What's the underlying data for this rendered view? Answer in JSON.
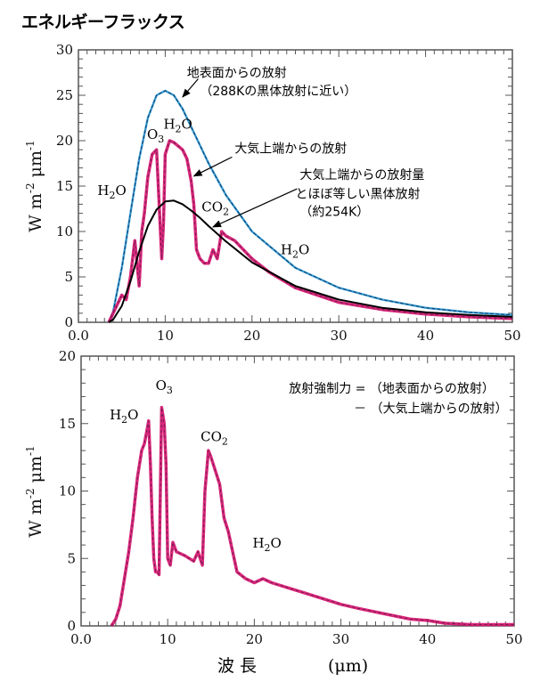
{
  "title": "エネルギーフラックス",
  "chart_data": [
    {
      "type": "line",
      "title": "エネルギーフラックス",
      "ylabel": "W m-2 μm-1",
      "ylabel_parts": {
        "base1": "W m",
        "sup1": "-2",
        "base2": " μm",
        "sup2": "-1"
      },
      "xlim": [
        0,
        50
      ],
      "ylim": [
        0,
        30
      ],
      "x_ticks": [
        "0.0",
        "10",
        "20",
        "30",
        "40",
        "50"
      ],
      "x_tick_values": [
        0,
        10,
        20,
        30,
        40,
        50
      ],
      "y_ticks": [
        "0",
        "5",
        "10",
        "15",
        "20",
        "25",
        "30"
      ],
      "y_tick_values": [
        0,
        5,
        10,
        15,
        20,
        25,
        30
      ],
      "grid": false,
      "series": [
        {
          "name": "地表面からの放射 (288Kの黒体放射に近い)",
          "color": "#1a6fa8",
          "x": [
            3.5,
            4,
            5,
            6,
            7,
            8,
            9,
            10,
            11,
            12,
            13,
            14,
            15,
            17,
            20,
            25,
            30,
            35,
            40,
            45,
            50
          ],
          "y": [
            0,
            1.2,
            6,
            12,
            18,
            22.5,
            25,
            25.5,
            25,
            23.5,
            21.5,
            19.5,
            17.5,
            14,
            10,
            6,
            3.8,
            2.5,
            1.6,
            1.1,
            0.8
          ]
        },
        {
          "name": "大気上端からの放射",
          "color": "#d4106a",
          "x": [
            3.5,
            4,
            5,
            5.5,
            6,
            6.5,
            7,
            7.3,
            7.6,
            8,
            8.5,
            9,
            9.3,
            9.6,
            9.8,
            10,
            10.5,
            11,
            12,
            12.5,
            13,
            13.3,
            13.6,
            14,
            14.5,
            15,
            15.5,
            16,
            16.5,
            17,
            18,
            19,
            20,
            22,
            25,
            30,
            35,
            40,
            45,
            50
          ],
          "y": [
            0,
            1,
            3,
            2.5,
            5,
            9,
            4,
            10,
            12,
            16,
            18.5,
            19,
            13,
            7,
            11,
            18.5,
            20,
            19.8,
            19,
            18,
            15.5,
            13,
            8,
            7,
            6.5,
            6.5,
            8,
            7,
            10,
            9.5,
            9,
            8,
            7,
            5.5,
            3.8,
            2.2,
            1.4,
            0.9,
            0.6,
            0.4
          ]
        },
        {
          "name": "大気上端からの放射量とほぼ等しい黒体放射 (約254K)",
          "color": "#000000",
          "x": [
            3.5,
            4,
            5,
            6,
            7,
            8,
            9,
            10,
            11,
            12,
            13,
            14,
            15,
            17,
            20,
            25,
            30,
            35,
            40,
            45,
            50
          ],
          "y": [
            0,
            0.3,
            1.8,
            4.5,
            7.8,
            10.6,
            12.4,
            13.3,
            13.4,
            13.0,
            12.3,
            11.5,
            10.6,
            8.9,
            6.6,
            4.0,
            2.5,
            1.6,
            1.1,
            0.8,
            0.6
          ]
        }
      ],
      "annotations": [
        {
          "text": "地表面からの放射",
          "x": 12.5,
          "y": 27
        },
        {
          "text": "（288Kの黒体放射に近い）",
          "x": 14,
          "y": 25
        },
        {
          "text": "大気上端からの放射",
          "x": 18,
          "y": 18.7
        },
        {
          "text": "大気上端からの放射量",
          "x": 25.5,
          "y": 15.8
        },
        {
          "text": "とほぼ等しい黒体放射",
          "x": 25,
          "y": 13.7
        },
        {
          "text": "（約254K）",
          "x": 25.5,
          "y": 11.7
        }
      ],
      "chem_labels": [
        {
          "base": "H",
          "sub": "2",
          "tail": "O",
          "x": 2.2,
          "y": 14
        },
        {
          "base": "O",
          "sub": "3",
          "tail": "",
          "x": 7.9,
          "y": 20.2
        },
        {
          "base": "H",
          "sub": "2",
          "tail": "O",
          "x": 9.8,
          "y": 21.3
        },
        {
          "base": "CO",
          "sub": "2",
          "tail": "",
          "x": 14.2,
          "y": 12.2
        },
        {
          "base": "H",
          "sub": "2",
          "tail": "O",
          "x": 23.3,
          "y": 7.5
        }
      ]
    },
    {
      "type": "line",
      "title": "放射強制力 = （地表面からの放射） − （大気上端からの放射）",
      "ylabel": "W m-2 μm-1",
      "ylabel_parts": {
        "base1": "W m",
        "sup1": "-2",
        "base2": " μm",
        "sup2": "-1"
      },
      "xlabel": "波 長",
      "xlabel_unit": "(μm)",
      "xlim": [
        0,
        50
      ],
      "ylim": [
        0,
        20
      ],
      "x_ticks": [
        "0.0",
        "10",
        "20",
        "30",
        "40",
        "50"
      ],
      "x_tick_values": [
        0,
        10,
        20,
        30,
        40,
        50
      ],
      "y_ticks": [
        "0",
        "5",
        "10",
        "15",
        "20"
      ],
      "y_tick_values": [
        0,
        5,
        10,
        15,
        20
      ],
      "grid": false,
      "series": [
        {
          "name": "放射強制力",
          "color": "#d4106a",
          "x": [
            3.5,
            4,
            4.5,
            5,
            5.5,
            6,
            6.5,
            7,
            7.3,
            7.6,
            7.8,
            8,
            8.2,
            8.4,
            8.6,
            8.8,
            9.0,
            9.3,
            9.6,
            9.8,
            10.0,
            10.3,
            10.6,
            11,
            12,
            13,
            13.5,
            14,
            14.3,
            14.7,
            15,
            15.5,
            16,
            16.5,
            17,
            17.5,
            18,
            19,
            20,
            21,
            22,
            24,
            26,
            28,
            30,
            32,
            35,
            38,
            40,
            42,
            45,
            50
          ],
          "y": [
            0,
            0.5,
            1.5,
            3.5,
            5.5,
            8,
            11,
            13,
            13.5,
            14.5,
            15.2,
            12,
            8,
            5,
            4,
            4,
            3.8,
            16.2,
            15,
            12,
            5,
            4.5,
            6.2,
            5.5,
            5.2,
            4.8,
            5.5,
            4.5,
            10,
            13,
            12.5,
            11.5,
            10.5,
            8,
            7,
            5.5,
            4,
            3.5,
            3.2,
            3.5,
            3.2,
            2.8,
            2.4,
            2.0,
            1.6,
            1.3,
            0.9,
            0.5,
            0.4,
            0.2,
            0.1,
            0.1
          ]
        }
      ],
      "annotations": [
        {
          "text": "放射強制力 = （地表面からの放射）",
          "x": 24,
          "y": 17.3
        },
        {
          "text": "－ （大気上端からの放射）",
          "x": 31.5,
          "y": 15.8
        }
      ],
      "chem_labels": [
        {
          "base": "H",
          "sub": "2",
          "tail": "O",
          "x": 3.3,
          "y": 15.3
        },
        {
          "base": "O",
          "sub": "3",
          "tail": "",
          "x": 8.6,
          "y": 17.5
        },
        {
          "base": "CO",
          "sub": "2",
          "tail": "",
          "x": 13.8,
          "y": 13.7
        },
        {
          "base": "H",
          "sub": "2",
          "tail": "O",
          "x": 19.8,
          "y": 5.8
        }
      ]
    }
  ]
}
